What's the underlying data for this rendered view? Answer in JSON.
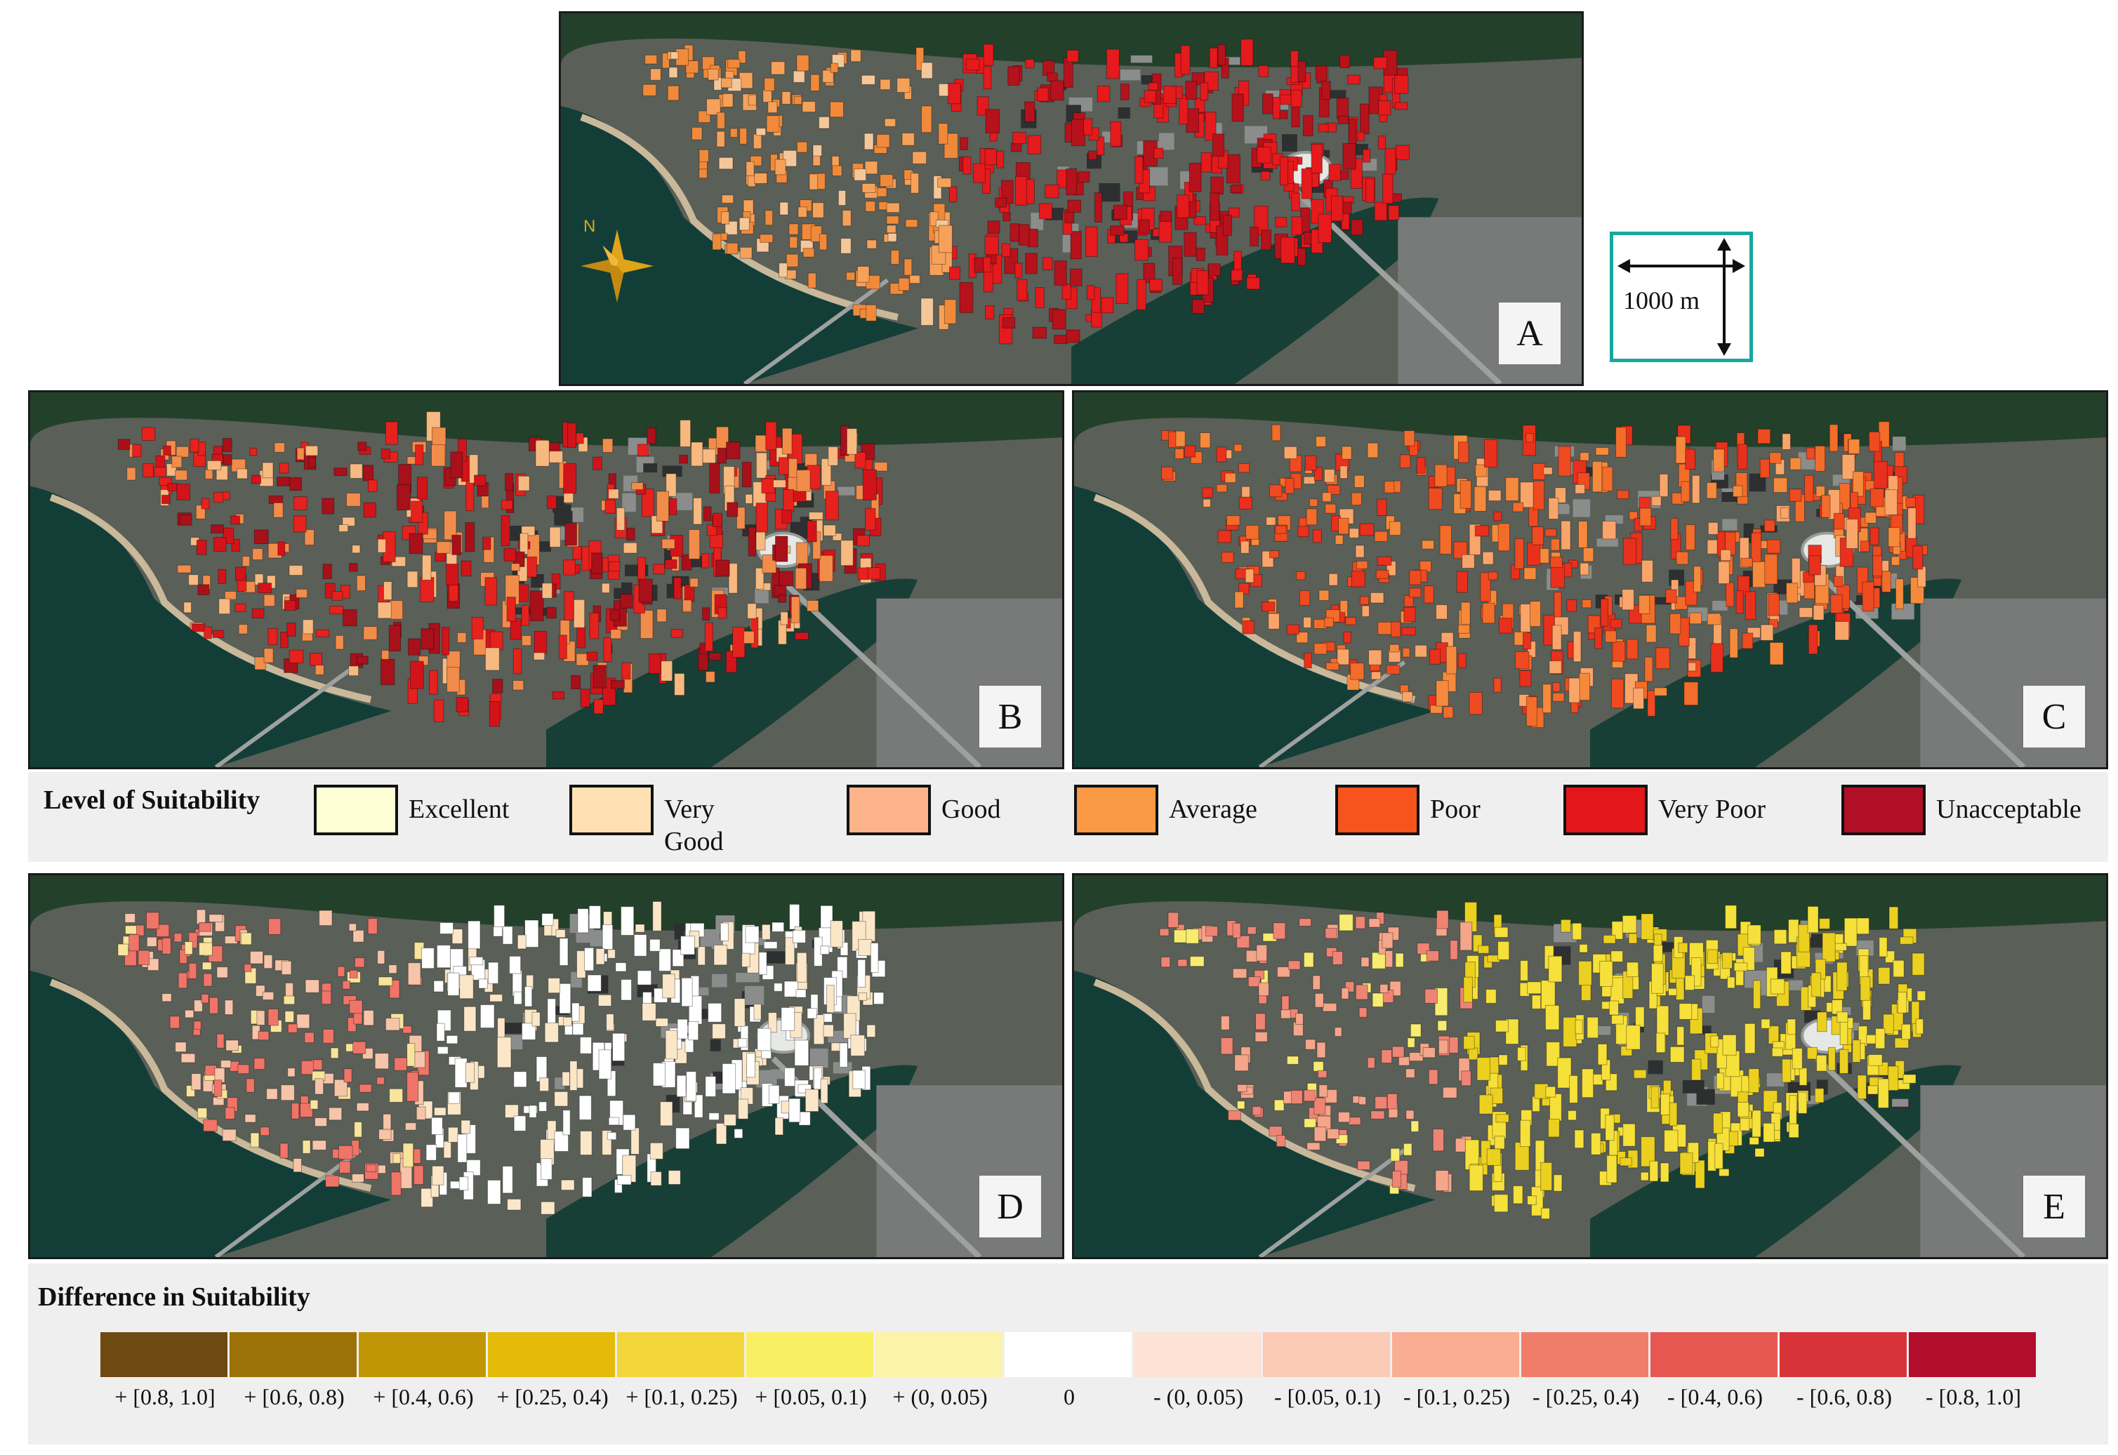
{
  "panels": [
    {
      "id": "A",
      "label": "A",
      "palette": [
        "#e41a1c",
        "#b5121b",
        "#f08a3a",
        "#f6a15a",
        "#f4c79a"
      ]
    },
    {
      "id": "B",
      "label": "B",
      "palette": [
        "#d2141a",
        "#e5221e",
        "#a8101a",
        "#f28c4a",
        "#f7b97f"
      ]
    },
    {
      "id": "C",
      "label": "C",
      "palette": [
        "#f36c2a",
        "#f58a3c",
        "#ef4a20",
        "#f9a56a",
        "#e8301c"
      ]
    },
    {
      "id": "D",
      "label": "D",
      "palette": [
        "#ffffff",
        "#fbe7c8",
        "#f07468",
        "#f6c4a8",
        "#f8e49a"
      ]
    },
    {
      "id": "E",
      "label": "E",
      "palette": [
        "#f6e03a",
        "#ecd020",
        "#f4a58a",
        "#ef8474",
        "#f7ec70"
      ]
    }
  ],
  "compass": {
    "label": "N"
  },
  "scale_bar": {
    "label": "1000 m"
  },
  "suitability_legend": {
    "title": "Level of Suitability",
    "items": [
      {
        "label": "Excellent",
        "color": "#ffffd6"
      },
      {
        "label": "Very Good",
        "color": "#fee0b3"
      },
      {
        "label": "Good",
        "color": "#fdb48a"
      },
      {
        "label": "Average",
        "color": "#fb9a45"
      },
      {
        "label": "Poor",
        "color": "#f6531d"
      },
      {
        "label": "Very Poor",
        "color": "#e3161a"
      },
      {
        "label": "Unacceptable",
        "color": "#b00f26"
      }
    ]
  },
  "difference_legend": {
    "title": "Difference in Suitability",
    "items": [
      {
        "label": "+ [0.8, 1.0]",
        "color": "#6e4a12"
      },
      {
        "label": "+ [0.6, 0.8)",
        "color": "#9a7208"
      },
      {
        "label": "+ [0.4, 0.6)",
        "color": "#c09606"
      },
      {
        "label": "+ [0.25, 0.4)",
        "color": "#e3bb08"
      },
      {
        "label": "+ [0.1, 0.25)",
        "color": "#f2d63a"
      },
      {
        "label": "+ [0.05, 0.1)",
        "color": "#f9ef62"
      },
      {
        "label": "+ (0, 0.05)",
        "color": "#fbf3a8"
      },
      {
        "label": "0",
        "color": "#ffffff"
      },
      {
        "label": "- (0, 0.05)",
        "color": "#fde3d6"
      },
      {
        "label": "- [0.05, 0.1)",
        "color": "#fccbb6"
      },
      {
        "label": "- [0.1, 0.25)",
        "color": "#f9ad93"
      },
      {
        "label": "- [0.25, 0.4)",
        "color": "#f07d6a"
      },
      {
        "label": "- [0.4, 0.6)",
        "color": "#e65752"
      },
      {
        "label": "- [0.6, 0.8)",
        "color": "#d83338"
      },
      {
        "label": "- [0.8, 1.0]",
        "color": "#b20d2a"
      }
    ]
  }
}
